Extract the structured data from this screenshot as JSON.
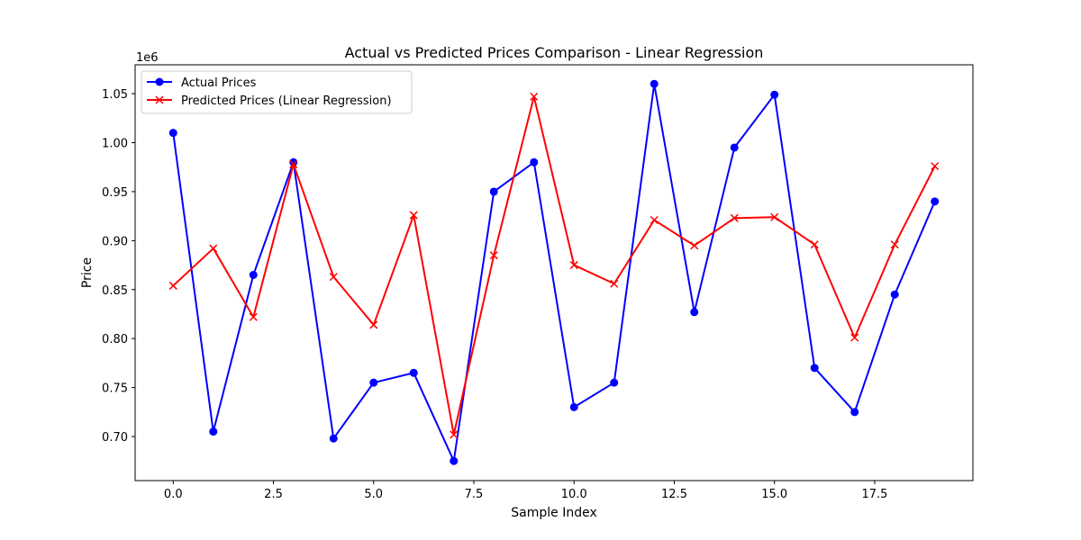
{
  "chart_data": {
    "type": "line",
    "title": "Actual vs Predicted Prices Comparison - Linear Regression",
    "xlabel": "Sample Index",
    "ylabel": "Price",
    "y_offset_label": "1e6",
    "xlim": [
      -0.95,
      19.95
    ],
    "ylim": [
      0.655,
      1.0795
    ],
    "x_ticks": [
      0.0,
      2.5,
      5.0,
      7.5,
      10.0,
      12.5,
      15.0,
      17.5
    ],
    "x_tick_labels": [
      "0.0",
      "2.5",
      "5.0",
      "7.5",
      "10.0",
      "12.5",
      "15.0",
      "17.5"
    ],
    "y_ticks": [
      0.7,
      0.75,
      0.8,
      0.85,
      0.9,
      0.95,
      1.0,
      1.05
    ],
    "y_tick_labels": [
      "0.70",
      "0.75",
      "0.80",
      "0.85",
      "0.90",
      "0.95",
      "1.00",
      "1.05"
    ],
    "grid": false,
    "legend_position": "top-left",
    "x": [
      0,
      1,
      2,
      3,
      4,
      5,
      6,
      7,
      8,
      9,
      10,
      11,
      12,
      13,
      14,
      15,
      16,
      17,
      18,
      19
    ],
    "series": [
      {
        "name": "Actual Prices",
        "color": "#0000ff",
        "marker": "circle",
        "values": [
          1.01,
          0.705,
          0.865,
          0.98,
          0.698,
          0.755,
          0.765,
          0.675,
          0.95,
          0.98,
          0.73,
          0.755,
          1.06,
          0.827,
          0.995,
          1.049,
          0.77,
          0.725,
          0.845,
          0.94
        ]
      },
      {
        "name": "Predicted Prices (Linear Regression)",
        "color": "#ff0000",
        "marker": "x",
        "values": [
          0.854,
          0.892,
          0.822,
          0.978,
          0.863,
          0.814,
          0.926,
          0.702,
          0.885,
          1.047,
          0.875,
          0.856,
          0.921,
          0.895,
          0.923,
          0.924,
          0.896,
          0.801,
          0.896,
          0.976
        ]
      }
    ]
  }
}
